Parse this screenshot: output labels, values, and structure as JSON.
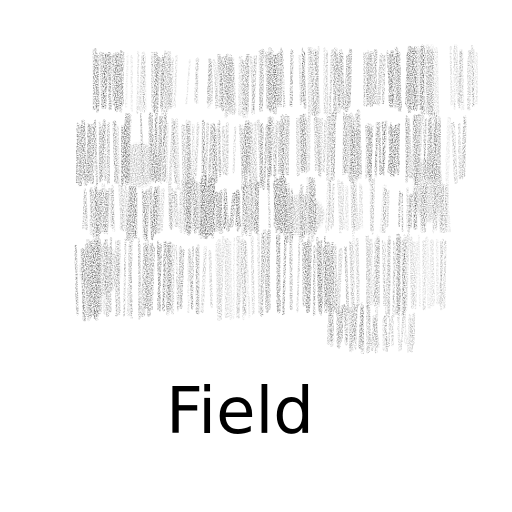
{
  "caption": "Field",
  "icon": "pencil-scribble-texture-icon",
  "colors": {
    "background": "#ffffff",
    "stroke": "#111111",
    "caption": "#000000"
  }
}
